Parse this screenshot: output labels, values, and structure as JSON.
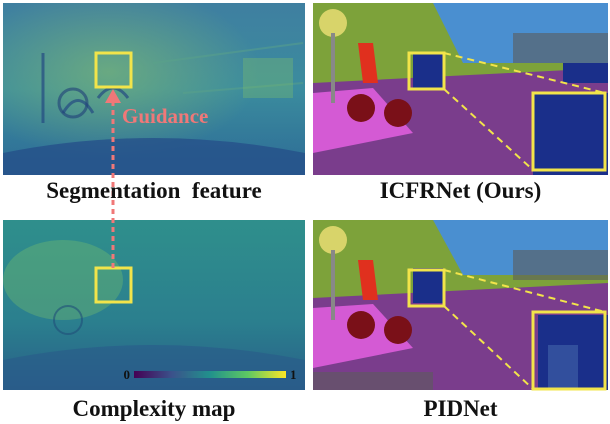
{
  "figure": {
    "captions": {
      "top_left": "Segmentation  feature",
      "top_right": "ICFRNet (Ours)",
      "bottom_left": "Complexity map",
      "bottom_right": "PIDNet"
    },
    "annotation": "Guidance",
    "colorbar": {
      "min_label": "0",
      "max_label": "1"
    }
  },
  "colors": {
    "annotation": "#f07878",
    "box": "#f2e44a",
    "road": "#7a3d8c",
    "sidewalk": "#d45ad4",
    "vegetation": "#7da23a",
    "sky": "#4a8fd0",
    "car": "#1a2f8a",
    "person": "#e0301e",
    "bicycle": "#7a1018",
    "building": "#5c5c5c"
  }
}
